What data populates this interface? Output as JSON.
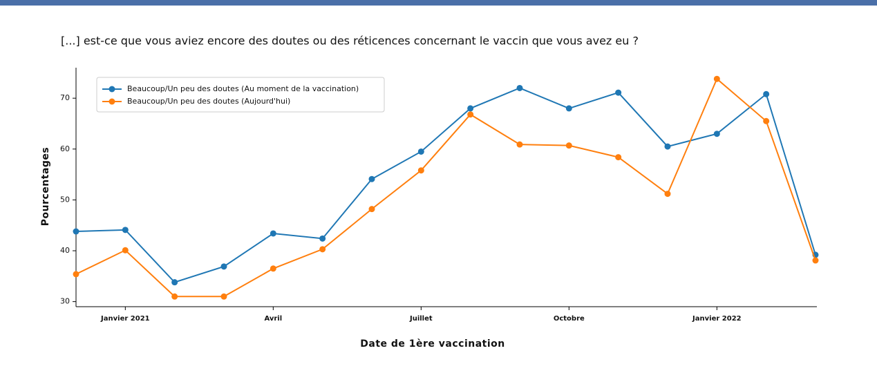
{
  "chart_data": {
    "type": "line",
    "title": "[...] est-ce que vous aviez encore des doutes ou des réticences concernant le vaccin que vous avez eu ?",
    "xlabel": "Date de 1ère vaccination",
    "ylabel": "Pourcentages",
    "categories": [
      null,
      "Janvier 2021",
      null,
      null,
      "Avril",
      null,
      null,
      "Juillet",
      null,
      null,
      "Octobre",
      null,
      null,
      "Janvier 2022",
      null,
      null
    ],
    "series": [
      {
        "name": "Beaucoup/Un peu des doutes (Au moment de la vaccination)",
        "color": "#1f77b4",
        "values": [
          43.8,
          44.1,
          33.8,
          36.9,
          43.4,
          42.4,
          54.1,
          59.5,
          68.0,
          72.0,
          68.0,
          71.1,
          60.5,
          63.0,
          70.8,
          39.2
        ]
      },
      {
        "name": "Beaucoup/Un peu des doutes (Aujourd'hui)",
        "color": "#ff7f0e",
        "values": [
          35.4,
          40.1,
          31.0,
          31.0,
          36.5,
          40.3,
          48.2,
          55.8,
          66.8,
          60.9,
          60.7,
          58.4,
          51.2,
          73.8,
          65.5,
          38.1
        ]
      }
    ],
    "ylim": [
      29,
      76
    ],
    "yticks": [
      30,
      40,
      50,
      60,
      70
    ],
    "legend": "upper left",
    "grid": false
  }
}
